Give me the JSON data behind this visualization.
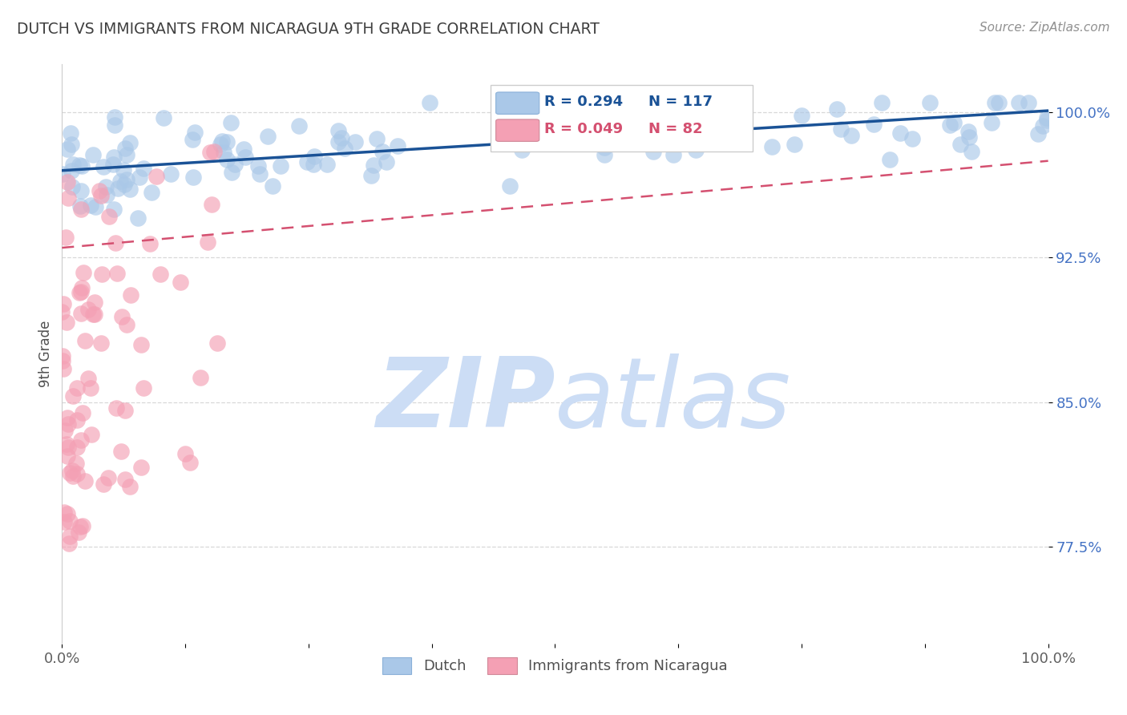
{
  "title": "DUTCH VS IMMIGRANTS FROM NICARAGUA 9TH GRADE CORRELATION CHART",
  "source_text": "Source: ZipAtlas.com",
  "ylabel": "9th Grade",
  "ytick_labels": [
    "77.5%",
    "85.0%",
    "92.5%",
    "100.0%"
  ],
  "ytick_values": [
    0.775,
    0.85,
    0.925,
    1.0
  ],
  "xlim": [
    0.0,
    1.0
  ],
  "ylim": [
    0.725,
    1.025
  ],
  "legend_r_dutch": "R = 0.294",
  "legend_n_dutch": "N = 117",
  "legend_r_nica": "R = 0.049",
  "legend_n_nica": "N = 82",
  "dutch_color": "#aac8e8",
  "dutch_line_color": "#1a5296",
  "nica_color": "#f4a0b4",
  "nica_line_color": "#d45070",
  "watermark_zip": "ZIP",
  "watermark_atlas": "atlas",
  "watermark_color": "#ccddf5",
  "background_color": "#ffffff",
  "grid_color": "#d8d8d8",
  "title_color": "#404040",
  "ytick_color": "#4472c4",
  "source_color": "#909090",
  "dutch_trend_x": [
    0.0,
    1.0
  ],
  "dutch_trend_y": [
    0.97,
    1.001
  ],
  "nica_trend_x": [
    0.0,
    1.0
  ],
  "nica_trend_y": [
    0.93,
    0.975
  ]
}
